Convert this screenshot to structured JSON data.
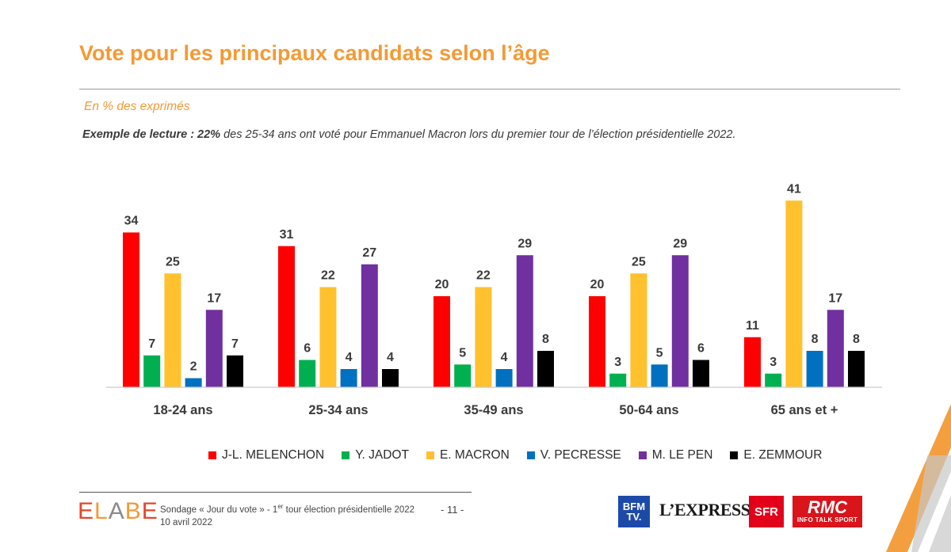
{
  "header": {
    "title": "Vote pour les principaux candidats selon l’âge",
    "subtitle": "En % des exprimés",
    "reading_prefix": "Exemple de lecture : 22%",
    "reading_text": " des 25-34 ans ont voté pour Emmanuel Macron lors du premier tour de l’élection présidentielle 2022."
  },
  "chart_data": {
    "type": "bar",
    "title": "Vote pour les principaux candidats selon l’âge",
    "ylabel": "",
    "xlabel": "",
    "ylim": [
      0,
      45
    ],
    "grid": false,
    "legend_position": "bottom",
    "categories": [
      "18-24 ans",
      "25-34 ans",
      "35-49 ans",
      "50-64 ans",
      "65 ans et +"
    ],
    "series": [
      {
        "name": "J-L. MELENCHON",
        "color": "#ff0000",
        "values": [
          34,
          31,
          20,
          20,
          11
        ]
      },
      {
        "name": "Y. JADOT",
        "color": "#00b050",
        "values": [
          7,
          6,
          5,
          3,
          3
        ]
      },
      {
        "name": "E. MACRON",
        "color": "#ffc12e",
        "values": [
          25,
          22,
          22,
          25,
          41
        ]
      },
      {
        "name": "V. PECRESSE",
        "color": "#0070c0",
        "values": [
          2,
          4,
          4,
          5,
          8
        ]
      },
      {
        "name": "M. LE PEN",
        "color": "#7030a0",
        "values": [
          17,
          27,
          29,
          29,
          17
        ]
      },
      {
        "name": "E. ZEMMOUR",
        "color": "#000000",
        "values": [
          7,
          4,
          8,
          6,
          8
        ]
      }
    ]
  },
  "footer": {
    "brand_letters": [
      {
        "ch": "E",
        "color": "#e4472c"
      },
      {
        "ch": "L",
        "color": "#f39a35"
      },
      {
        "ch": "A",
        "color": "#8a8a8a"
      },
      {
        "ch": "B",
        "color": "#f39a35"
      },
      {
        "ch": "E",
        "color": "#e4472c"
      }
    ],
    "source_line1_a": "Sondage « Jour du vote » - 1",
    "source_line1_sup": "er",
    "source_line1_b": " tour élection présidentielle 2022",
    "source_line2": "10 avril 2022",
    "page_number": "- 11 -"
  },
  "partners": {
    "bfm_line1": "BFM",
    "bfm_line2": "TV.",
    "express": "L’EXPRESS",
    "sfr": "SFR",
    "rmc": "RMC",
    "rmc_tagline": "INFO TALK SPORT"
  }
}
